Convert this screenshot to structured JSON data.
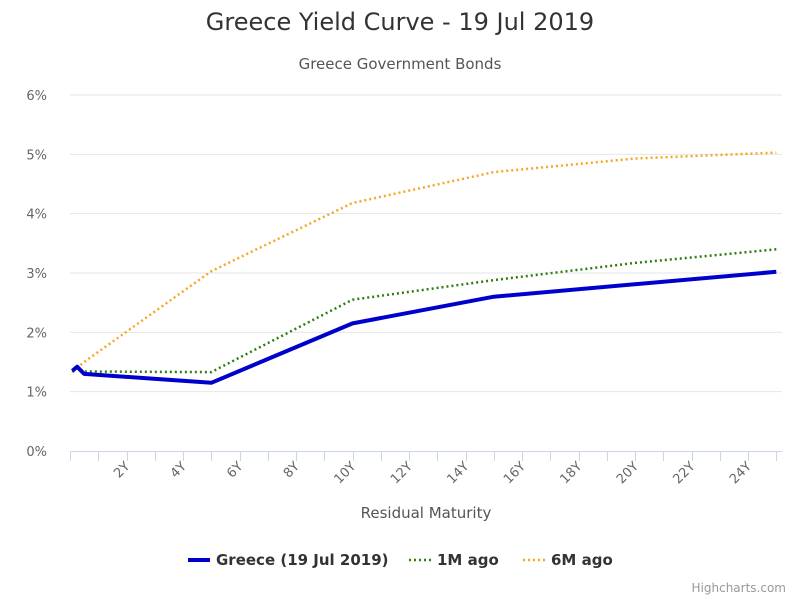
{
  "chart_data": {
    "type": "line",
    "title": "Greece Yield Curve - 19 Jul 2019",
    "subtitle": "Greece Government Bonds",
    "xlabel": "Residual Maturity",
    "ylabel": "",
    "x_unit": "years",
    "xlim": [
      0,
      25.2
    ],
    "ylim": [
      0,
      6
    ],
    "x_ticks": [
      {
        "value": 2,
        "label": "2Y"
      },
      {
        "value": 4,
        "label": "4Y"
      },
      {
        "value": 6,
        "label": "6Y"
      },
      {
        "value": 8,
        "label": "8Y"
      },
      {
        "value": 10,
        "label": "10Y"
      },
      {
        "value": 12,
        "label": "12Y"
      },
      {
        "value": 14,
        "label": "14Y"
      },
      {
        "value": 16,
        "label": "16Y"
      },
      {
        "value": 18,
        "label": "18Y"
      },
      {
        "value": 20,
        "label": "20Y"
      },
      {
        "value": 22,
        "label": "22Y"
      },
      {
        "value": 24,
        "label": "24Y"
      }
    ],
    "y_ticks": [
      {
        "value": 0,
        "label": "0%"
      },
      {
        "value": 1,
        "label": "1%"
      },
      {
        "value": 2,
        "label": "2%"
      },
      {
        "value": 3,
        "label": "3%"
      },
      {
        "value": 4,
        "label": "4%"
      },
      {
        "value": 5,
        "label": "5%"
      },
      {
        "value": 6,
        "label": "6%"
      }
    ],
    "grid": "horizontal",
    "legend_position": "bottom-center",
    "series": [
      {
        "name": "Greece (19 Jul 2019)",
        "color": "#0000cc",
        "dash": "solid",
        "x": [
          0.08,
          0.25,
          0.5,
          5,
          10,
          15,
          25
        ],
        "y": [
          1.35,
          1.42,
          1.3,
          1.15,
          2.15,
          2.6,
          3.02
        ]
      },
      {
        "name": "1M ago",
        "color": "#2e7d0e",
        "dash": "dotted",
        "x": [
          0.08,
          0.25,
          0.5,
          5,
          10,
          15,
          20,
          25
        ],
        "y": [
          1.33,
          1.4,
          1.34,
          1.33,
          2.55,
          2.88,
          3.17,
          3.4
        ]
      },
      {
        "name": "6M ago",
        "color": "#f5a623",
        "dash": "dotted",
        "x": [
          0.08,
          0.25,
          0.5,
          5,
          10,
          15,
          20,
          25
        ],
        "y": [
          1.35,
          1.4,
          1.5,
          3.03,
          4.18,
          4.7,
          4.93,
          5.03
        ]
      }
    ]
  },
  "credits": "Highcharts.com"
}
